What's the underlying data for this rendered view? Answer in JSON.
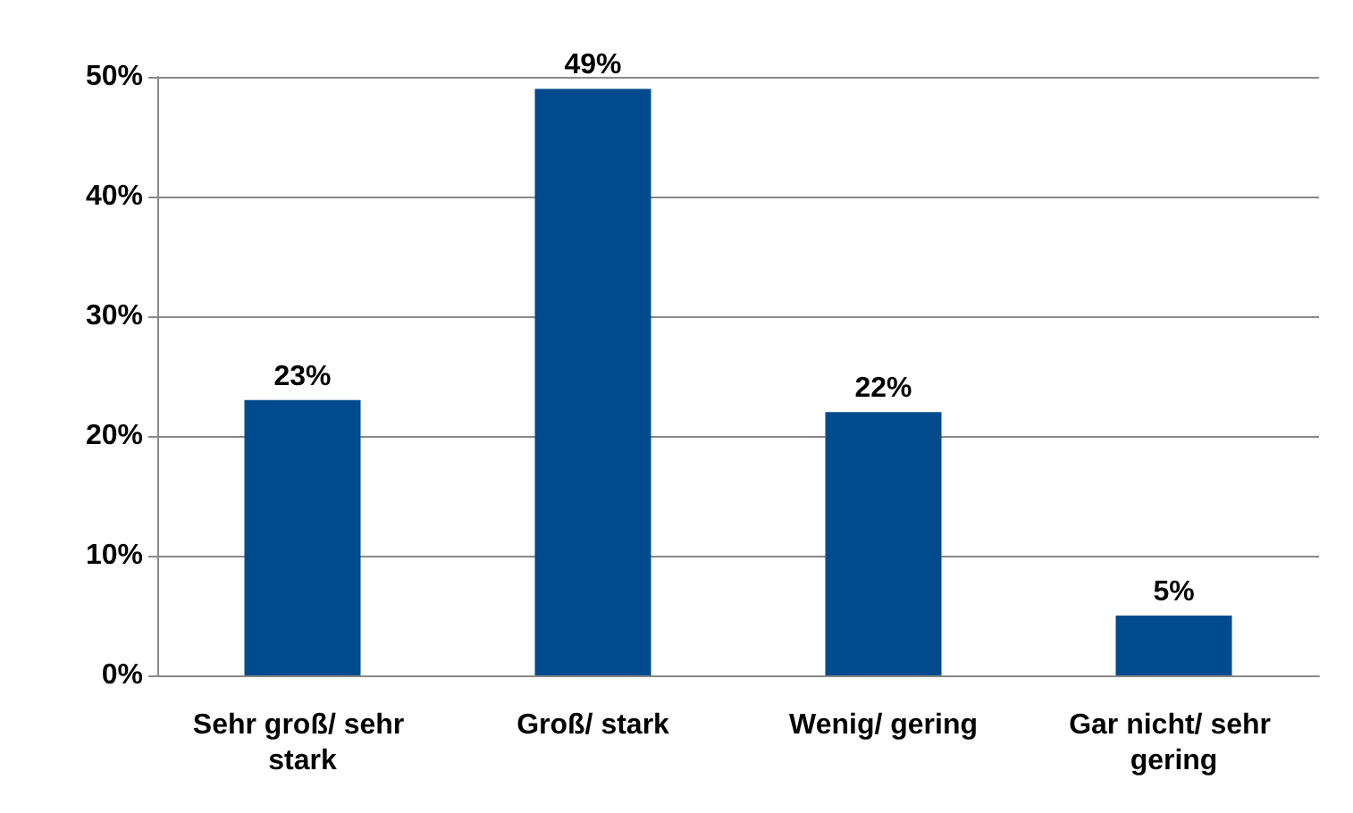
{
  "chart_data": {
    "type": "bar",
    "categories": [
      "Sehr groß/ sehr stark",
      "Groß/ stark",
      "Wenig/ gering",
      "Gar nicht/ sehr gering"
    ],
    "values": [
      23,
      49,
      22,
      5
    ],
    "color": "#004b8d",
    "value_labels": [
      "23%",
      "49%",
      "22%",
      "5%"
    ],
    "ylim": [
      0,
      50
    ],
    "yticks": [
      {
        "value": 0,
        "label": "0%"
      },
      {
        "value": 10,
        "label": "10%"
      },
      {
        "value": 20,
        "label": "20%"
      },
      {
        "value": 30,
        "label": "30%"
      },
      {
        "value": 40,
        "label": "40%"
      },
      {
        "value": 50,
        "label": "50%"
      }
    ],
    "grid": "y"
  }
}
